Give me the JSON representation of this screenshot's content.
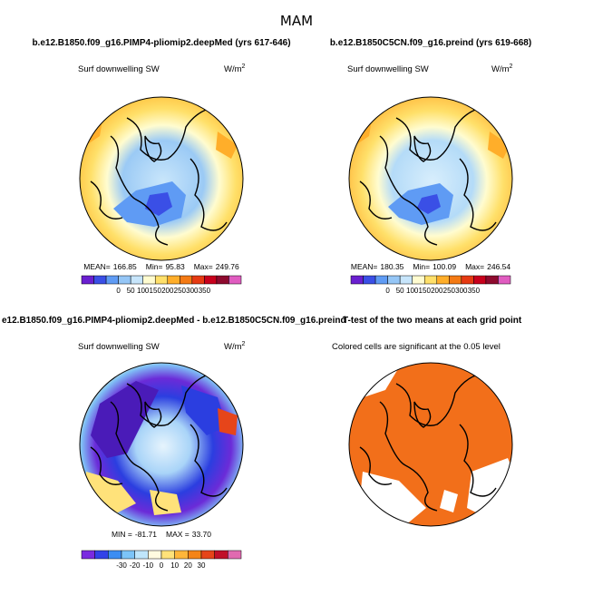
{
  "page_title": "MAM",
  "chart_data": [
    {
      "type": "heatmap",
      "title": "b.e12.B1850.f09_g16.PIMP4-pliomip2.deepMed (yrs 617-646)",
      "variable": "Surf downwelling SW",
      "units": "W/m",
      "units_exp": "2",
      "stats": {
        "mean_label": "MEAN=",
        "mean": "166.85",
        "min_label": "Min=",
        "min": "95.83",
        "max_label": "Max=",
        "max": "249.76"
      },
      "colorbar": {
        "ticks": [
          "0",
          "50",
          "100",
          "150",
          "200",
          "250",
          "300",
          "350"
        ],
        "colors": [
          "#6a1fd0",
          "#3a4fe6",
          "#5f9bf4",
          "#95c6f6",
          "#c7e5fb",
          "#fffcd0",
          "#ffe06a",
          "#ffae2a",
          "#f47a14",
          "#e63a12",
          "#c8001c",
          "#8e0a2e",
          "#e05cc0"
        ]
      }
    },
    {
      "type": "heatmap",
      "title": "b.e12.B1850C5CN.f09_g16.preind (yrs 619-668)",
      "variable": "Surf downwelling SW",
      "units": "W/m",
      "units_exp": "2",
      "stats": {
        "mean_label": "MEAN=",
        "mean": "180.35",
        "min_label": "Min=",
        "min": "100.09",
        "max_label": "Max=",
        "max": "246.54"
      },
      "colorbar": {
        "ticks": [
          "0",
          "50",
          "100",
          "150",
          "200",
          "250",
          "300",
          "350"
        ],
        "colors": [
          "#6a1fd0",
          "#3a4fe6",
          "#5f9bf4",
          "#95c6f6",
          "#c7e5fb",
          "#fffcd0",
          "#ffe06a",
          "#ffae2a",
          "#f47a14",
          "#e63a12",
          "#c8001c",
          "#8e0a2e",
          "#e05cc0"
        ]
      }
    },
    {
      "type": "heatmap",
      "title": "e12.B1850.f09_g16.PIMP4-pliomip2.deepMed - b.e12.B1850C5CN.f09_g16.preind",
      "variable": "Surf downwelling SW",
      "units": "W/m",
      "units_exp": "2",
      "stats": {
        "min_label": "MIN =",
        "min": "-81.71",
        "max_label": "MAX =",
        "max": "33.70"
      },
      "colorbar": {
        "ticks": [
          "-30",
          "-20",
          "-10",
          "0",
          "10",
          "20",
          "30"
        ],
        "colors": [
          "#7a2ae0",
          "#3142e8",
          "#3c8df2",
          "#7cc4f8",
          "#bfe6fb",
          "#fffbe0",
          "#ffe27a",
          "#ffb63a",
          "#f48418",
          "#e6451a",
          "#c0102a",
          "#e06ab0"
        ]
      }
    },
    {
      "type": "heatmap",
      "title": "T-test of the two means at each grid point",
      "variable": "Colored cells are significant at the 0.05 level",
      "significant_color": "#f26f1a"
    }
  ]
}
